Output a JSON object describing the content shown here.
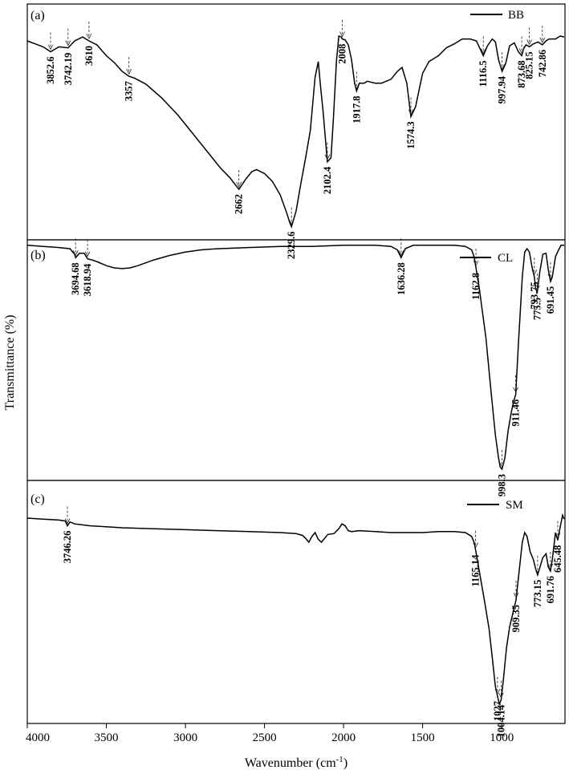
{
  "chart_data": {
    "type": "line",
    "xlabel": "Wavenumber (cm",
    "xlabel_sup": "-1",
    "xlabel_close": ")",
    "ylabel": "Transmittance (%)",
    "xlim": [
      4000,
      600
    ],
    "x_ticks": [
      4000,
      3500,
      3000,
      2500,
      2000,
      1500,
      1000
    ],
    "panels": [
      {
        "panel_label": "(a)",
        "series_name": "BB",
        "ylim": [
          0,
          1
        ],
        "points": [
          [
            4000,
            0.955
          ],
          [
            3950,
            0.94
          ],
          [
            3900,
            0.925
          ],
          [
            3852.6,
            0.9
          ],
          [
            3800,
            0.925
          ],
          [
            3742.19,
            0.92
          ],
          [
            3700,
            0.955
          ],
          [
            3650,
            0.975
          ],
          [
            3610,
            0.955
          ],
          [
            3560,
            0.935
          ],
          [
            3500,
            0.88
          ],
          [
            3450,
            0.845
          ],
          [
            3400,
            0.8
          ],
          [
            3357,
            0.775
          ],
          [
            3320,
            0.765
          ],
          [
            3250,
            0.735
          ],
          [
            3150,
            0.665
          ],
          [
            3050,
            0.58
          ],
          [
            2950,
            0.48
          ],
          [
            2850,
            0.38
          ],
          [
            2780,
            0.31
          ],
          [
            2720,
            0.26
          ],
          [
            2662,
            0.2
          ],
          [
            2620,
            0.25
          ],
          [
            2580,
            0.29
          ],
          [
            2550,
            0.3
          ],
          [
            2500,
            0.28
          ],
          [
            2450,
            0.24
          ],
          [
            2400,
            0.17
          ],
          [
            2360,
            0.08
          ],
          [
            2340,
            0.03
          ],
          [
            2329.6,
            0.01
          ],
          [
            2300,
            0.09
          ],
          [
            2270,
            0.23
          ],
          [
            2240,
            0.36
          ],
          [
            2210,
            0.5
          ],
          [
            2180,
            0.77
          ],
          [
            2160,
            0.85
          ],
          [
            2145,
            0.72
          ],
          [
            2130,
            0.6
          ],
          [
            2102.4,
            0.34
          ],
          [
            2080,
            0.36
          ],
          [
            2065,
            0.55
          ],
          [
            2045,
            0.85
          ],
          [
            2030,
            0.98
          ],
          [
            2015,
            0.975
          ],
          [
            2008,
            0.965
          ],
          [
            1990,
            0.96
          ],
          [
            1970,
            0.935
          ],
          [
            1950,
            0.86
          ],
          [
            1930,
            0.74
          ],
          [
            1917.8,
            0.7
          ],
          [
            1900,
            0.74
          ],
          [
            1870,
            0.74
          ],
          [
            1850,
            0.75
          ],
          [
            1800,
            0.74
          ],
          [
            1760,
            0.74
          ],
          [
            1700,
            0.76
          ],
          [
            1660,
            0.8
          ],
          [
            1630,
            0.82
          ],
          [
            1600,
            0.74
          ],
          [
            1574.3,
            0.57
          ],
          [
            1545,
            0.62
          ],
          [
            1500,
            0.79
          ],
          [
            1460,
            0.85
          ],
          [
            1400,
            0.88
          ],
          [
            1350,
            0.92
          ],
          [
            1300,
            0.94
          ],
          [
            1250,
            0.965
          ],
          [
            1200,
            0.965
          ],
          [
            1160,
            0.955
          ],
          [
            1140,
            0.92
          ],
          [
            1116.5,
            0.88
          ],
          [
            1090,
            0.93
          ],
          [
            1060,
            0.965
          ],
          [
            1040,
            0.95
          ],
          [
            1020,
            0.86
          ],
          [
            997.94,
            0.8
          ],
          [
            975,
            0.84
          ],
          [
            950,
            0.93
          ],
          [
            920,
            0.945
          ],
          [
            895,
            0.9
          ],
          [
            873.68,
            0.88
          ],
          [
            860,
            0.92
          ],
          [
            845,
            0.935
          ],
          [
            825.15,
            0.925
          ],
          [
            800,
            0.94
          ],
          [
            770,
            0.95
          ],
          [
            742.86,
            0.935
          ],
          [
            720,
            0.955
          ],
          [
            700,
            0.965
          ],
          [
            660,
            0.965
          ],
          [
            630,
            0.98
          ],
          [
            605,
            0.975
          ]
        ],
        "peaks": [
          {
            "x": 3852.6,
            "label": "3852.6"
          },
          {
            "x": 3742.19,
            "label": "3742.19"
          },
          {
            "x": 3610,
            "label": "3610"
          },
          {
            "x": 3357,
            "label": "3357"
          },
          {
            "x": 2662,
            "label": "2662"
          },
          {
            "x": 2329.6,
            "label": "2329.6"
          },
          {
            "x": 2102.4,
            "label": "2102.4"
          },
          {
            "x": 2008,
            "label": "2008"
          },
          {
            "x": 1917.8,
            "label": "1917.8"
          },
          {
            "x": 1574.3,
            "label": "1574.3"
          },
          {
            "x": 1116.5,
            "label": "1116.5"
          },
          {
            "x": 997.94,
            "label": "997.94"
          },
          {
            "x": 873.68,
            "label": "873.68"
          },
          {
            "x": 825.15,
            "label": "825.15"
          },
          {
            "x": 742.86,
            "label": "742.86"
          }
        ]
      },
      {
        "panel_label": "(b)",
        "series_name": "CL",
        "ylim": [
          0,
          1
        ],
        "points": [
          [
            4000,
            0.99
          ],
          [
            3900,
            0.985
          ],
          [
            3800,
            0.98
          ],
          [
            3730,
            0.975
          ],
          [
            3700,
            0.95
          ],
          [
            3694.68,
            0.935
          ],
          [
            3670,
            0.955
          ],
          [
            3640,
            0.955
          ],
          [
            3618.94,
            0.93
          ],
          [
            3590,
            0.925
          ],
          [
            3550,
            0.915
          ],
          [
            3500,
            0.9
          ],
          [
            3450,
            0.89
          ],
          [
            3400,
            0.887
          ],
          [
            3350,
            0.89
          ],
          [
            3300,
            0.9
          ],
          [
            3200,
            0.925
          ],
          [
            3100,
            0.945
          ],
          [
            3000,
            0.96
          ],
          [
            2900,
            0.97
          ],
          [
            2800,
            0.975
          ],
          [
            2600,
            0.98
          ],
          [
            2400,
            0.985
          ],
          [
            2200,
            0.985
          ],
          [
            2000,
            0.99
          ],
          [
            1800,
            0.99
          ],
          [
            1700,
            0.985
          ],
          [
            1660,
            0.97
          ],
          [
            1636.28,
            0.935
          ],
          [
            1610,
            0.975
          ],
          [
            1560,
            0.99
          ],
          [
            1400,
            0.99
          ],
          [
            1300,
            0.99
          ],
          [
            1230,
            0.985
          ],
          [
            1190,
            0.97
          ],
          [
            1175,
            0.94
          ],
          [
            1162.8,
            0.89
          ],
          [
            1140,
            0.79
          ],
          [
            1100,
            0.58
          ],
          [
            1070,
            0.36
          ],
          [
            1040,
            0.15
          ],
          [
            1020,
            0.05
          ],
          [
            1010,
            0.01
          ],
          [
            998.3,
            0.0
          ],
          [
            980,
            0.05
          ],
          [
            960,
            0.17
          ],
          [
            940,
            0.25
          ],
          [
            925,
            0.3
          ],
          [
            911.46,
            0.33
          ],
          [
            895,
            0.55
          ],
          [
            870,
            0.85
          ],
          [
            855,
            0.96
          ],
          [
            840,
            0.975
          ],
          [
            825,
            0.96
          ],
          [
            810,
            0.9
          ],
          [
            793.75,
            0.85
          ],
          [
            785,
            0.8
          ],
          [
            775.5,
            0.78
          ],
          [
            760,
            0.87
          ],
          [
            740,
            0.95
          ],
          [
            720,
            0.955
          ],
          [
            705,
            0.88
          ],
          [
            691.45,
            0.83
          ],
          [
            680,
            0.85
          ],
          [
            660,
            0.94
          ],
          [
            640,
            0.97
          ],
          [
            625,
            0.99
          ],
          [
            605,
            0.99
          ]
        ],
        "peaks": [
          {
            "x": 3694.68,
            "label": "3694.68"
          },
          {
            "x": 3618.94,
            "label": "3618.94"
          },
          {
            "x": 1636.28,
            "label": "1636.28"
          },
          {
            "x": 1162.8,
            "label": "1162.8"
          },
          {
            "x": 998.3,
            "label": "998.3"
          },
          {
            "x": 911.46,
            "label": "911.46"
          },
          {
            "x": 793.75,
            "label": "793.75"
          },
          {
            "x": 775.5,
            "label": "775.5"
          },
          {
            "x": 691.45,
            "label": "691.45"
          }
        ]
      },
      {
        "panel_label": "(c)",
        "series_name": "SM",
        "ylim": [
          0,
          1
        ],
        "points": [
          [
            4000,
            0.975
          ],
          [
            3900,
            0.97
          ],
          [
            3800,
            0.965
          ],
          [
            3760,
            0.96
          ],
          [
            3746.26,
            0.935
          ],
          [
            3730,
            0.955
          ],
          [
            3700,
            0.945
          ],
          [
            3600,
            0.935
          ],
          [
            3500,
            0.93
          ],
          [
            3400,
            0.925
          ],
          [
            3200,
            0.92
          ],
          [
            3000,
            0.915
          ],
          [
            2800,
            0.91
          ],
          [
            2600,
            0.905
          ],
          [
            2400,
            0.9
          ],
          [
            2300,
            0.895
          ],
          [
            2260,
            0.885
          ],
          [
            2240,
            0.87
          ],
          [
            2220,
            0.85
          ],
          [
            2200,
            0.88
          ],
          [
            2180,
            0.9
          ],
          [
            2160,
            0.865
          ],
          [
            2140,
            0.85
          ],
          [
            2120,
            0.87
          ],
          [
            2100,
            0.89
          ],
          [
            2060,
            0.895
          ],
          [
            2030,
            0.92
          ],
          [
            2010,
            0.945
          ],
          [
            1990,
            0.935
          ],
          [
            1970,
            0.91
          ],
          [
            1950,
            0.905
          ],
          [
            1900,
            0.91
          ],
          [
            1800,
            0.905
          ],
          [
            1700,
            0.9
          ],
          [
            1600,
            0.9
          ],
          [
            1500,
            0.9
          ],
          [
            1400,
            0.905
          ],
          [
            1300,
            0.905
          ],
          [
            1230,
            0.9
          ],
          [
            1190,
            0.88
          ],
          [
            1175,
            0.85
          ],
          [
            1165.14,
            0.81
          ],
          [
            1140,
            0.69
          ],
          [
            1110,
            0.55
          ],
          [
            1080,
            0.4
          ],
          [
            1060,
            0.25
          ],
          [
            1040,
            0.1
          ],
          [
            1027,
            0.05
          ],
          [
            1015,
            0.01
          ],
          [
            1004.14,
            0.03
          ],
          [
            990,
            0.13
          ],
          [
            970,
            0.3
          ],
          [
            950,
            0.41
          ],
          [
            930,
            0.48
          ],
          [
            909.35,
            0.55
          ],
          [
            890,
            0.7
          ],
          [
            870,
            0.85
          ],
          [
            855,
            0.9
          ],
          [
            840,
            0.88
          ],
          [
            820,
            0.8
          ],
          [
            800,
            0.76
          ],
          [
            785,
            0.71
          ],
          [
            773.15,
            0.68
          ],
          [
            755,
            0.73
          ],
          [
            740,
            0.77
          ],
          [
            720,
            0.79
          ],
          [
            705,
            0.72
          ],
          [
            691.76,
            0.7
          ],
          [
            680,
            0.76
          ],
          [
            660,
            0.9
          ],
          [
            645.48,
            0.86
          ],
          [
            630,
            0.93
          ],
          [
            615,
            0.99
          ],
          [
            605,
            0.97
          ]
        ],
        "peaks": [
          {
            "x": 3746.26,
            "label": "3746.26"
          },
          {
            "x": 1165.14,
            "label": "1165.14"
          },
          {
            "x": 1027,
            "label": "1027"
          },
          {
            "x": 1004.14,
            "label": "1004.14"
          },
          {
            "x": 909.35,
            "label": "909.35"
          },
          {
            "x": 773.15,
            "label": "773.15"
          },
          {
            "x": 691.76,
            "label": "691.76"
          },
          {
            "x": 645.48,
            "label": "645.48"
          }
        ]
      }
    ]
  }
}
